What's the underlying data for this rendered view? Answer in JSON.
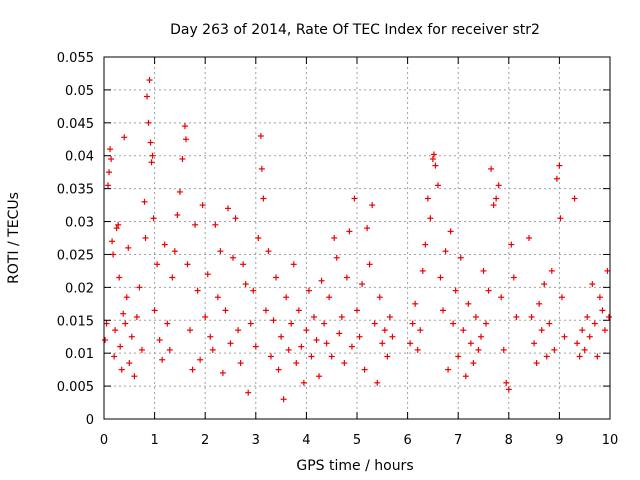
{
  "chart_data": {
    "type": "scatter",
    "title": "Day 263 of 2014, Rate Of TEC Index for receiver str2",
    "xlabel": "GPS time / hours",
    "ylabel": "ROTI / TECUs",
    "xlim": [
      0,
      10
    ],
    "ylim": [
      0,
      0.055
    ],
    "xticks": [
      "0",
      "1",
      "2",
      "3",
      "4",
      "5",
      "6",
      "7",
      "8",
      "9",
      "10"
    ],
    "yticks": [
      "0",
      "0.005",
      "0.01",
      "0.015",
      "0.02",
      "0.025",
      "0.03",
      "0.035",
      "0.04",
      "0.045",
      "0.05",
      "0.055"
    ],
    "grid": true,
    "marker": "+",
    "color": "#ee0000",
    "series": [
      {
        "name": "str2",
        "points": [
          [
            0.02,
            0.012
          ],
          [
            0.05,
            0.0145
          ],
          [
            0.08,
            0.0355
          ],
          [
            0.1,
            0.0375
          ],
          [
            0.12,
            0.041
          ],
          [
            0.14,
            0.0395
          ],
          [
            0.16,
            0.027
          ],
          [
            0.18,
            0.025
          ],
          [
            0.2,
            0.0095
          ],
          [
            0.22,
            0.0135
          ],
          [
            0.25,
            0.029
          ],
          [
            0.28,
            0.0295
          ],
          [
            0.3,
            0.0215
          ],
          [
            0.32,
            0.011
          ],
          [
            0.35,
            0.0075
          ],
          [
            0.38,
            0.016
          ],
          [
            0.4,
            0.0428
          ],
          [
            0.42,
            0.0145
          ],
          [
            0.45,
            0.0185
          ],
          [
            0.48,
            0.026
          ],
          [
            0.5,
            0.0085
          ],
          [
            0.55,
            0.0125
          ],
          [
            0.6,
            0.0065
          ],
          [
            0.65,
            0.0155
          ],
          [
            0.7,
            0.02
          ],
          [
            0.75,
            0.0105
          ],
          [
            0.8,
            0.033
          ],
          [
            0.82,
            0.0275
          ],
          [
            0.85,
            0.049
          ],
          [
            0.88,
            0.045
          ],
          [
            0.9,
            0.0515
          ],
          [
            0.92,
            0.042
          ],
          [
            0.94,
            0.039
          ],
          [
            0.96,
            0.04
          ],
          [
            0.98,
            0.0305
          ],
          [
            1.0,
            0.0165
          ],
          [
            1.05,
            0.0235
          ],
          [
            1.1,
            0.012
          ],
          [
            1.15,
            0.009
          ],
          [
            1.2,
            0.0265
          ],
          [
            1.25,
            0.0145
          ],
          [
            1.3,
            0.0105
          ],
          [
            1.35,
            0.0215
          ],
          [
            1.4,
            0.0255
          ],
          [
            1.45,
            0.031
          ],
          [
            1.5,
            0.0345
          ],
          [
            1.55,
            0.0395
          ],
          [
            1.6,
            0.0445
          ],
          [
            1.62,
            0.0425
          ],
          [
            1.65,
            0.0235
          ],
          [
            1.7,
            0.0135
          ],
          [
            1.75,
            0.0075
          ],
          [
            1.8,
            0.0295
          ],
          [
            1.85,
            0.0195
          ],
          [
            1.9,
            0.009
          ],
          [
            1.95,
            0.0325
          ],
          [
            2.0,
            0.0155
          ],
          [
            2.05,
            0.022
          ],
          [
            2.1,
            0.0125
          ],
          [
            2.15,
            0.0105
          ],
          [
            2.2,
            0.0295
          ],
          [
            2.25,
            0.0185
          ],
          [
            2.3,
            0.0255
          ],
          [
            2.35,
            0.007
          ],
          [
            2.4,
            0.0165
          ],
          [
            2.45,
            0.032
          ],
          [
            2.5,
            0.0115
          ],
          [
            2.55,
            0.0245
          ],
          [
            2.6,
            0.0305
          ],
          [
            2.65,
            0.0135
          ],
          [
            2.7,
            0.0085
          ],
          [
            2.75,
            0.0235
          ],
          [
            2.8,
            0.0205
          ],
          [
            2.85,
            0.004
          ],
          [
            2.9,
            0.0145
          ],
          [
            2.95,
            0.0195
          ],
          [
            3.0,
            0.011
          ],
          [
            3.05,
            0.0275
          ],
          [
            3.1,
            0.043
          ],
          [
            3.12,
            0.038
          ],
          [
            3.15,
            0.0335
          ],
          [
            3.2,
            0.0165
          ],
          [
            3.25,
            0.0255
          ],
          [
            3.3,
            0.0095
          ],
          [
            3.35,
            0.015
          ],
          [
            3.4,
            0.0215
          ],
          [
            3.45,
            0.0075
          ],
          [
            3.5,
            0.0125
          ],
          [
            3.55,
            0.003
          ],
          [
            3.6,
            0.0185
          ],
          [
            3.65,
            0.0105
          ],
          [
            3.7,
            0.0145
          ],
          [
            3.75,
            0.0235
          ],
          [
            3.8,
            0.0085
          ],
          [
            3.85,
            0.0165
          ],
          [
            3.9,
            0.011
          ],
          [
            3.95,
            0.0055
          ],
          [
            4.0,
            0.0135
          ],
          [
            4.05,
            0.0195
          ],
          [
            4.1,
            0.0095
          ],
          [
            4.15,
            0.0155
          ],
          [
            4.2,
            0.012
          ],
          [
            4.25,
            0.0065
          ],
          [
            4.3,
            0.021
          ],
          [
            4.35,
            0.0145
          ],
          [
            4.4,
            0.0115
          ],
          [
            4.45,
            0.0185
          ],
          [
            4.5,
            0.0095
          ],
          [
            4.55,
            0.0275
          ],
          [
            4.6,
            0.0245
          ],
          [
            4.65,
            0.013
          ],
          [
            4.7,
            0.0155
          ],
          [
            4.75,
            0.0085
          ],
          [
            4.8,
            0.0215
          ],
          [
            4.85,
            0.0285
          ],
          [
            4.9,
            0.011
          ],
          [
            4.95,
            0.0335
          ],
          [
            5.0,
            0.0165
          ],
          [
            5.05,
            0.0125
          ],
          [
            5.1,
            0.0205
          ],
          [
            5.15,
            0.0075
          ],
          [
            5.2,
            0.029
          ],
          [
            5.25,
            0.0235
          ],
          [
            5.3,
            0.0325
          ],
          [
            5.35,
            0.0145
          ],
          [
            5.4,
            0.0055
          ],
          [
            5.45,
            0.0185
          ],
          [
            5.5,
            0.0115
          ],
          [
            5.55,
            0.0135
          ],
          [
            5.6,
            0.0095
          ],
          [
            5.65,
            0.0155
          ],
          [
            5.7,
            0.0125
          ],
          [
            6.05,
            0.0115
          ],
          [
            6.1,
            0.0145
          ],
          [
            6.15,
            0.0175
          ],
          [
            6.2,
            0.0105
          ],
          [
            6.25,
            0.0135
          ],
          [
            6.3,
            0.0225
          ],
          [
            6.35,
            0.0265
          ],
          [
            6.4,
            0.0335
          ],
          [
            6.45,
            0.0305
          ],
          [
            6.5,
            0.0395
          ],
          [
            6.52,
            0.0402
          ],
          [
            6.55,
            0.0385
          ],
          [
            6.6,
            0.0355
          ],
          [
            6.65,
            0.0215
          ],
          [
            6.7,
            0.0165
          ],
          [
            6.75,
            0.0255
          ],
          [
            6.8,
            0.0075
          ],
          [
            6.85,
            0.0285
          ],
          [
            6.9,
            0.0145
          ],
          [
            6.95,
            0.0195
          ],
          [
            7.0,
            0.0095
          ],
          [
            7.05,
            0.0245
          ],
          [
            7.1,
            0.0135
          ],
          [
            7.15,
            0.0065
          ],
          [
            7.2,
            0.0175
          ],
          [
            7.25,
            0.0115
          ],
          [
            7.3,
            0.0085
          ],
          [
            7.35,
            0.0155
          ],
          [
            7.4,
            0.0105
          ],
          [
            7.45,
            0.0125
          ],
          [
            7.5,
            0.0225
          ],
          [
            7.55,
            0.0145
          ],
          [
            7.6,
            0.0195
          ],
          [
            7.65,
            0.038
          ],
          [
            7.7,
            0.0325
          ],
          [
            7.75,
            0.0335
          ],
          [
            7.8,
            0.0355
          ],
          [
            7.85,
            0.0185
          ],
          [
            7.9,
            0.0105
          ],
          [
            7.95,
            0.0055
          ],
          [
            8.0,
            0.0045
          ],
          [
            8.05,
            0.0265
          ],
          [
            8.1,
            0.0215
          ],
          [
            8.15,
            0.0155
          ],
          [
            8.4,
            0.0275
          ],
          [
            8.45,
            0.0155
          ],
          [
            8.5,
            0.0115
          ],
          [
            8.55,
            0.0085
          ],
          [
            8.6,
            0.0175
          ],
          [
            8.65,
            0.0135
          ],
          [
            8.7,
            0.0205
          ],
          [
            8.75,
            0.0095
          ],
          [
            8.8,
            0.0145
          ],
          [
            8.85,
            0.0225
          ],
          [
            8.9,
            0.0105
          ],
          [
            8.95,
            0.0365
          ],
          [
            9.0,
            0.0385
          ],
          [
            9.02,
            0.0305
          ],
          [
            9.05,
            0.0185
          ],
          [
            9.1,
            0.0125
          ],
          [
            9.3,
            0.0335
          ],
          [
            9.35,
            0.0115
          ],
          [
            9.4,
            0.0095
          ],
          [
            9.45,
            0.0135
          ],
          [
            9.5,
            0.0105
          ],
          [
            9.55,
            0.0155
          ],
          [
            9.6,
            0.0125
          ],
          [
            9.65,
            0.0205
          ],
          [
            9.7,
            0.0145
          ],
          [
            9.75,
            0.0095
          ],
          [
            9.8,
            0.0185
          ],
          [
            9.85,
            0.0165
          ],
          [
            9.9,
            0.0135
          ],
          [
            9.95,
            0.0225
          ],
          [
            9.98,
            0.0155
          ]
        ]
      }
    ]
  }
}
